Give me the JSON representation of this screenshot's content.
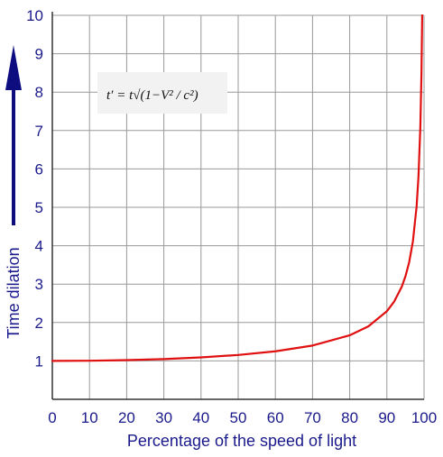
{
  "chart_data": {
    "type": "line",
    "title": "",
    "xlabel": "Percentage of the speed of light",
    "ylabel": "Time dilation",
    "xlim": [
      0,
      100
    ],
    "ylim": [
      0,
      10
    ],
    "xticks": [
      "0",
      "10",
      "20",
      "30",
      "40",
      "50",
      "60",
      "70",
      "80",
      "90",
      "100"
    ],
    "yticks": [
      "1",
      "2",
      "3",
      "4",
      "5",
      "6",
      "7",
      "8",
      "9",
      "10"
    ],
    "grid": true,
    "formula": "t′ = t√(1−V² / c²)",
    "series": [
      {
        "color": "#e01010",
        "x": [
          0,
          10,
          20,
          30,
          40,
          50,
          60,
          70,
          80,
          85,
          90,
          92,
          94,
          95,
          96,
          97,
          98,
          98.5,
          99,
          99.3,
          99.5
        ],
        "y": [
          1.0,
          1.005,
          1.021,
          1.048,
          1.091,
          1.155,
          1.25,
          1.4,
          1.667,
          1.898,
          2.294,
          2.552,
          2.931,
          3.203,
          3.571,
          4.113,
          5.025,
          5.803,
          7.089,
          8.466,
          10.0
        ]
      }
    ],
    "arrow_color": "#0d0d80"
  }
}
